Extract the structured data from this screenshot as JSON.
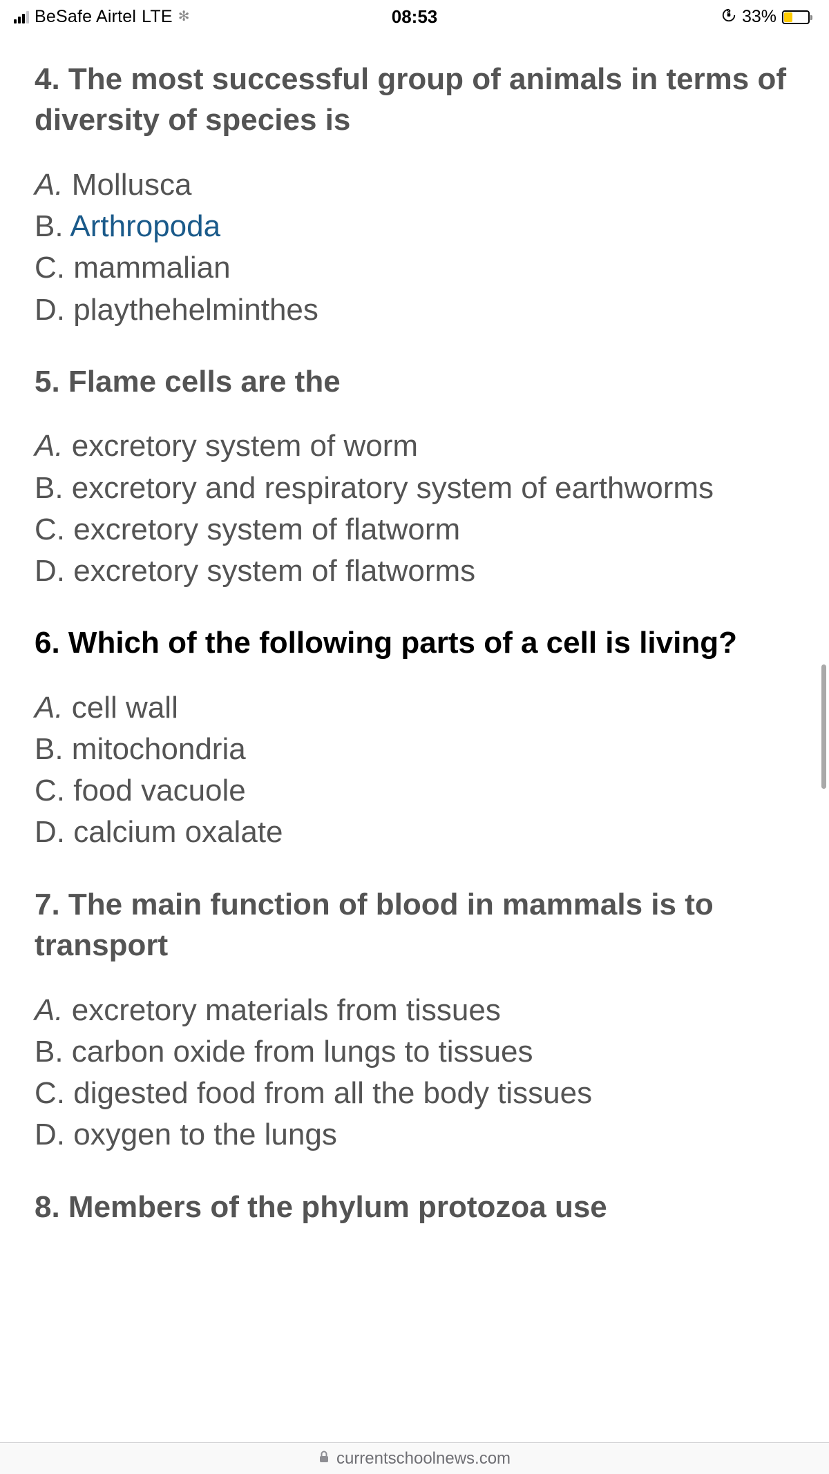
{
  "statusBar": {
    "carrier": "BeSafe Airtel",
    "network": "LTE",
    "time": "08:53",
    "batteryPercent": "33%",
    "batteryFillPercent": 33,
    "batteryColor": "#ffcc00"
  },
  "partialHeader": "– . . . .–.,. . . . – . –",
  "questions": [
    {
      "number": "4.",
      "title": "The most successful group of animals in terms of diversity of species is",
      "titleStyle": "gray",
      "options": [
        {
          "letter": "A.",
          "text": "Mollusca",
          "highlighted": false,
          "italic": true
        },
        {
          "letter": "B.",
          "text": "Arthropoda",
          "highlighted": true,
          "italic": false
        },
        {
          "letter": "C.",
          "text": "mammalian",
          "highlighted": false,
          "italic": false
        },
        {
          "letter": "D.",
          "text": "playthehelminthes",
          "highlighted": false,
          "italic": false
        }
      ]
    },
    {
      "number": "5.",
      "title": "Flame cells are the",
      "titleStyle": "gray",
      "options": [
        {
          "letter": "A.",
          "text": "excretory system of worm",
          "highlighted": false,
          "italic": true
        },
        {
          "letter": "B.",
          "text": "excretory and respiratory system of earthworms",
          "highlighted": false,
          "italic": false
        },
        {
          "letter": "C.",
          "text": "excretory system of flatworm",
          "highlighted": false,
          "italic": false
        },
        {
          "letter": "D.",
          "text": "excretory system of flatworms",
          "highlighted": false,
          "italic": false
        }
      ]
    },
    {
      "number": "6.",
      "title": "Which of the following parts of a cell is living?",
      "titleStyle": "black",
      "options": [
        {
          "letter": "A.",
          "text": "cell wall",
          "highlighted": false,
          "italic": true
        },
        {
          "letter": "B.",
          "text": "mitochondria",
          "highlighted": false,
          "italic": false
        },
        {
          "letter": "C.",
          "text": "food vacuole",
          "highlighted": false,
          "italic": false
        },
        {
          "letter": "D.",
          "text": "calcium oxalate",
          "highlighted": false,
          "italic": false
        }
      ]
    },
    {
      "number": "7.",
      "title": "The main function of blood in mammals is to transport",
      "titleStyle": "gray",
      "options": [
        {
          "letter": "A.",
          "text": "excretory materials from tissues",
          "highlighted": false,
          "italic": true
        },
        {
          "letter": "B.",
          "text": "carbon oxide from lungs to tissues",
          "highlighted": false,
          "italic": false
        },
        {
          "letter": "C.",
          "text": "digested food from all the body tissues",
          "highlighted": false,
          "italic": false
        },
        {
          "letter": "D.",
          "text": "oxygen to the lungs",
          "highlighted": false,
          "italic": false
        }
      ]
    },
    {
      "number": "8.",
      "title": "Members of the phylum protozoa use",
      "titleStyle": "gray",
      "options": []
    }
  ],
  "bottomBar": {
    "domain": "currentschoolnews.com"
  }
}
